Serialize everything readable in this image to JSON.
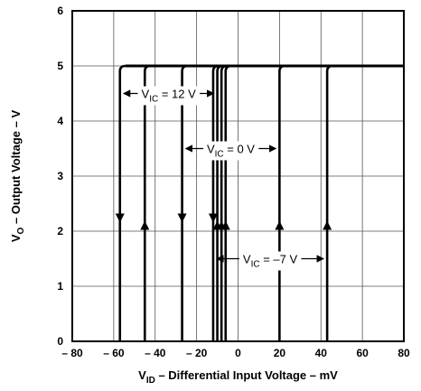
{
  "chart_data": {
    "type": "line",
    "title": "",
    "xlabel": {
      "main": "V",
      "sub": "ID",
      "rest": " – Differential Input Voltage – mV"
    },
    "ylabel": {
      "main": "V",
      "sub": "O",
      "rest": " – Output Voltage – V"
    },
    "xlim": [
      -80,
      80
    ],
    "ylim": [
      0,
      6
    ],
    "x_ticks": [
      -80,
      -60,
      -40,
      -20,
      0,
      20,
      40,
      60,
      80
    ],
    "x_tick_labels": [
      "– 80",
      "– 60",
      "– 40",
      "– 20",
      "0",
      "20",
      "40",
      "60",
      "80"
    ],
    "y_ticks": [
      0,
      1,
      2,
      3,
      4,
      5,
      6
    ],
    "y_tick_labels": [
      "0",
      "1",
      "2",
      "3",
      "4",
      "5",
      "6"
    ],
    "grid": true,
    "output_high": 5,
    "output_low": 0,
    "transitions": [
      {
        "x": -57,
        "direction": "down"
      },
      {
        "x": -45,
        "direction": "up"
      },
      {
        "x": -27,
        "direction": "down"
      },
      {
        "x": -12,
        "direction": "down"
      },
      {
        "x": -10,
        "direction": "up"
      },
      {
        "x": -8,
        "direction": "up"
      },
      {
        "x": -6,
        "direction": "up"
      },
      {
        "x": 20,
        "direction": "up"
      },
      {
        "x": 43,
        "direction": "up"
      }
    ],
    "annotations": [
      {
        "label": {
          "main": "V",
          "sub": "IC",
          "rest": " = 12 V"
        },
        "x_from": -57,
        "x_to": -10,
        "y": 4.5
      },
      {
        "label": {
          "main": "V",
          "sub": "IC",
          "rest": " = 0 V"
        },
        "x_from": -27,
        "x_to": 20,
        "y": 3.5
      },
      {
        "label": {
          "main": "V",
          "sub": "IC",
          "rest": " = –7 V"
        },
        "x_from": -12,
        "x_to": 43,
        "y": 1.5
      }
    ]
  }
}
